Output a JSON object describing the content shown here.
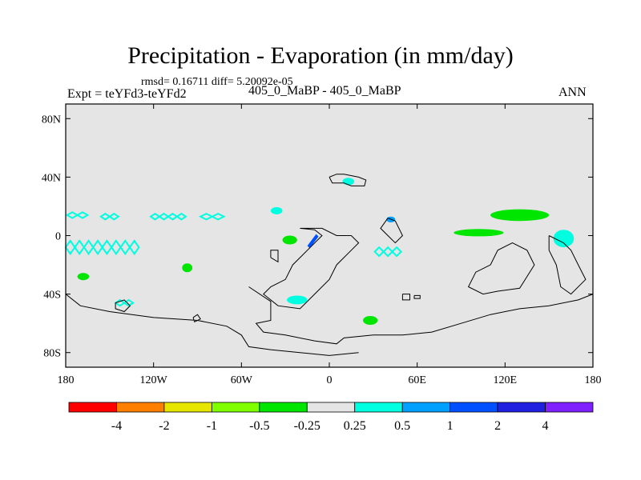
{
  "title": "Precipitation - Evaporation (in mm/day)",
  "stats": "rmsd= 0.16711 diff= 5.20092e-05",
  "expt": "Expt = teYFd3-teYFd2",
  "runs": "405_0_MaBP - 405_0_MaBP",
  "season": "ANN",
  "chart_data": {
    "type": "heatmap",
    "variable": "Precipitation - Evaporation difference",
    "units": "mm/day",
    "x_axis": {
      "range": [
        -180,
        180
      ],
      "ticks": [
        -180,
        -120,
        -60,
        0,
        60,
        120,
        180
      ],
      "tick_labels": [
        "180",
        "120W",
        "60W",
        "0",
        "60E",
        "120E",
        "180"
      ]
    },
    "y_axis": {
      "range": [
        -90,
        90
      ],
      "ticks": [
        80,
        40,
        0,
        -40,
        -80
      ],
      "tick_labels": [
        "80N",
        "40N",
        "0",
        "40S",
        "80S"
      ]
    },
    "colorbar": {
      "levels": [
        -4,
        -2,
        -1,
        -0.5,
        -0.25,
        0.25,
        0.5,
        1,
        2,
        4
      ],
      "labels": [
        "-4",
        "-2",
        "-1",
        "-0.5",
        "-0.25",
        "0.25",
        "0.5",
        "1",
        "2",
        "4"
      ],
      "colors": [
        "#ff0000",
        "#ff8000",
        "#e6e600",
        "#80ff00",
        "#00e600",
        "#e5e5e5",
        "#00ffe0",
        "#00a0ff",
        "#0050ff",
        "#2020e0",
        "#8020ff"
      ]
    },
    "background_color": "#e5e5e5",
    "patches": [
      {
        "lon": -172,
        "lat": 14,
        "w": 14,
        "h": 4,
        "color": "#00ffe0",
        "shape": "diamond-row"
      },
      {
        "lon": -150,
        "lat": 13,
        "w": 12,
        "h": 4,
        "color": "#00ffe0",
        "shape": "diamond-row"
      },
      {
        "lon": -110,
        "lat": 13,
        "w": 24,
        "h": 4,
        "color": "#00ffe0",
        "shape": "diamond-row"
      },
      {
        "lon": -80,
        "lat": 13,
        "w": 16,
        "h": 4,
        "color": "#00ffe0",
        "shape": "diamond-row"
      },
      {
        "lon": -36,
        "lat": 17,
        "w": 8,
        "h": 5,
        "color": "#00ffe0",
        "shape": "blob"
      },
      {
        "lon": -155,
        "lat": -8,
        "w": 50,
        "h": 9,
        "color": "#00ffe0",
        "shape": "diamond-row"
      },
      {
        "lon": -168,
        "lat": -28,
        "w": 8,
        "h": 5,
        "color": "#00e600",
        "shape": "blob"
      },
      {
        "lon": -97,
        "lat": -22,
        "w": 7,
        "h": 6,
        "color": "#00e600",
        "shape": "blob"
      },
      {
        "lon": -27,
        "lat": -3,
        "w": 10,
        "h": 6,
        "color": "#00e600",
        "shape": "blob"
      },
      {
        "lon": -12,
        "lat": -3,
        "w": 6,
        "h": 8,
        "color": "#0050ff",
        "shape": "bar"
      },
      {
        "lon": 13,
        "lat": 37,
        "w": 8,
        "h": 5,
        "color": "#00ffe0",
        "shape": "blob"
      },
      {
        "lon": 42,
        "lat": 11,
        "w": 6,
        "h": 4,
        "color": "#00a0ff",
        "shape": "blob"
      },
      {
        "lon": 40,
        "lat": -11,
        "w": 18,
        "h": 6,
        "color": "#00ffe0",
        "shape": "diamond-row"
      },
      {
        "lon": 102,
        "lat": 2,
        "w": 34,
        "h": 5,
        "color": "#00e600",
        "shape": "blob"
      },
      {
        "lon": 130,
        "lat": 14,
        "w": 40,
        "h": 8,
        "color": "#00e600",
        "shape": "blob"
      },
      {
        "lon": 160,
        "lat": -2,
        "w": 14,
        "h": 12,
        "color": "#00ffe0",
        "shape": "blob"
      },
      {
        "lon": -22,
        "lat": -44,
        "w": 14,
        "h": 6,
        "color": "#00ffe0",
        "shape": "blob"
      },
      {
        "lon": 28,
        "lat": -58,
        "w": 10,
        "h": 6,
        "color": "#00e600",
        "shape": "blob"
      },
      {
        "lon": -140,
        "lat": -46,
        "w": 12,
        "h": 4,
        "color": "#00ffe0",
        "shape": "diamond-row"
      }
    ]
  }
}
